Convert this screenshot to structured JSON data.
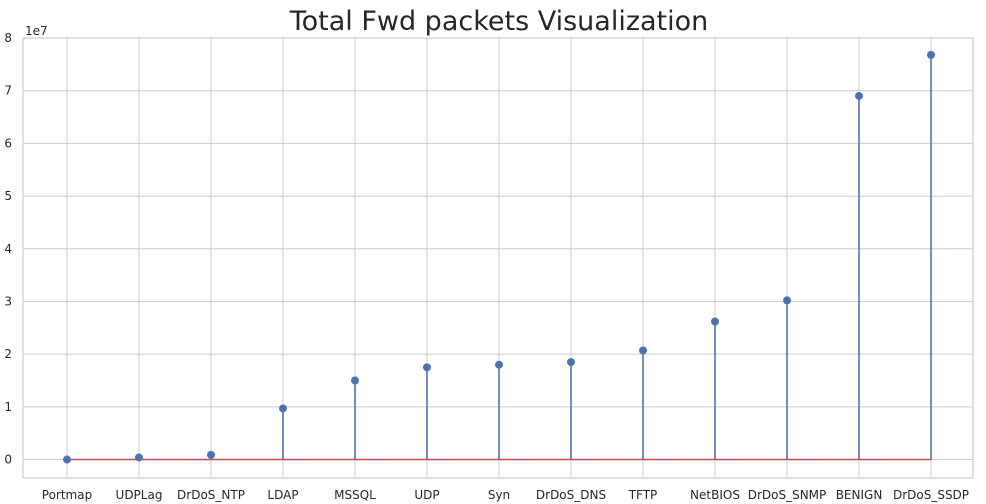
{
  "chart_data": {
    "type": "lollipop",
    "title": "Total Fwd packets Visualization",
    "xlabel": "",
    "ylabel": "",
    "y_offset_label": "1e7",
    "y_scale": 10000000,
    "ylim": [
      -0.35,
      8
    ],
    "yticks": [
      0,
      1,
      2,
      3,
      4,
      5,
      6,
      7,
      8
    ],
    "ytick_labels": [
      "0",
      "1",
      "2",
      "3",
      "4",
      "5",
      "6",
      "7",
      "8"
    ],
    "grid": true,
    "categories": [
      "Portmap",
      "UDPLag",
      "DrDoS_NTP",
      "LDAP",
      "MSSQL",
      "UDP",
      "Syn",
      "DrDoS_DNS",
      "TFTP",
      "NetBIOS",
      "DrDoS_SNMP",
      "BENIGN",
      "DrDoS_SSDP"
    ],
    "values": [
      0.0,
      0.04,
      0.09,
      0.97,
      1.5,
      1.75,
      1.8,
      1.85,
      2.07,
      2.62,
      3.02,
      6.9,
      7.68
    ],
    "colors": {
      "stem": "#4c72b0",
      "marker": "#4c72b0",
      "baseline": "#c44e52"
    }
  }
}
